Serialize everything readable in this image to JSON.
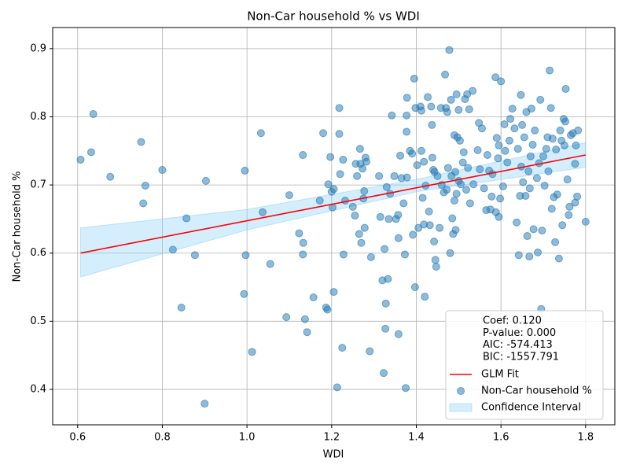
{
  "chart_data": {
    "type": "scatter",
    "title": "Non-Car household % vs WDI",
    "x_label": "WDI",
    "y_label": "Non-Car household %",
    "xlim": [
      0.541,
      1.869
    ],
    "ylim": [
      0.348,
      0.931
    ],
    "xticks": [
      0.6,
      0.8,
      {
        "value": 1,
        "label": "1.0"
      },
      1.2,
      1.4,
      1.6,
      1.8
    ],
    "yticks": [
      0.4,
      0.5,
      0.6,
      0.7,
      0.8,
      0.9
    ],
    "grid": true,
    "legend_position": "lower right",
    "annotations": [
      "Coef: 0.120",
      "P-value: 0.000",
      "AIC: -574.413",
      "BIC: -1557.791"
    ],
    "band": {
      "name": "Confidence Interval",
      "color": "#87cefa",
      "x": [
        0.607,
        1.0,
        1.4,
        1.8
      ],
      "lower": [
        0.565,
        0.634,
        0.69,
        0.726
      ],
      "upper": [
        0.637,
        0.664,
        0.708,
        0.762
      ]
    },
    "fit": {
      "name": "GLM Fit",
      "color": "#ff0000",
      "x": [
        0.607,
        1.8
      ],
      "values": [
        0.6,
        0.744
      ]
    },
    "series": [
      {
        "name": "Non-Car household %",
        "color": "#1f77b4",
        "x": [
          0.607,
          0.632,
          0.637,
          0.677,
          0.75,
          0.755,
          0.76,
          0.8,
          0.825,
          0.845,
          0.857,
          0.877,
          0.9,
          0.903,
          0.993,
          0.995,
          0.997,
          1.012,
          1.033,
          1.037,
          1.055,
          1.093,
          1.1,
          1.123,
          1.132,
          1.132,
          1.133,
          1.137,
          1.142,
          1.157,
          1.172,
          1.18,
          1.187,
          1.19,
          1.192,
          1.197,
          1.2,
          1.202,
          1.205,
          1.205,
          1.213,
          1.218,
          1.218,
          1.22,
          1.225,
          1.227,
          1.228,
          1.232,
          1.25,
          1.255,
          1.257,
          1.26,
          1.265,
          1.267,
          1.268,
          1.27,
          1.273,
          1.275,
          1.277,
          1.278,
          1.28,
          1.282,
          1.29,
          1.293,
          1.312,
          1.315,
          1.32,
          1.323,
          1.325,
          1.327,
          1.328,
          1.33,
          1.333,
          1.335,
          1.338,
          1.342,
          1.348,
          1.352,
          1.357,
          1.358,
          1.358,
          1.362,
          1.365,
          1.37,
          1.373,
          1.375,
          1.377,
          1.377,
          1.378,
          1.378,
          1.385,
          1.39,
          1.392,
          1.395,
          1.397,
          1.398,
          1.402,
          1.405,
          1.41,
          1.412,
          1.412,
          1.415,
          1.418,
          1.418,
          1.42,
          1.422,
          1.427,
          1.43,
          1.432,
          1.435,
          1.437,
          1.438,
          1.44,
          1.442,
          1.443,
          1.445,
          1.447,
          1.45,
          1.455,
          1.458,
          1.46,
          1.465,
          1.468,
          1.47,
          1.472,
          1.473,
          1.475,
          1.478,
          1.48,
          1.482,
          1.483,
          1.485,
          1.487,
          1.49,
          1.49,
          1.492,
          1.493,
          1.495,
          1.495,
          1.497,
          1.5,
          1.5,
          1.503,
          1.505,
          1.51,
          1.512,
          1.515,
          1.518,
          1.52,
          1.522,
          1.525,
          1.527,
          1.533,
          1.535,
          1.545,
          1.548,
          1.55,
          1.555,
          1.56,
          1.565,
          1.568,
          1.572,
          1.575,
          1.578,
          1.58,
          1.587,
          1.588,
          1.59,
          1.593,
          1.595,
          1.595,
          1.598,
          1.6,
          1.605,
          1.608,
          1.61,
          1.615,
          1.62,
          1.622,
          1.627,
          1.632,
          1.637,
          1.64,
          1.642,
          1.645,
          1.647,
          1.648,
          1.65,
          1.652,
          1.655,
          1.658,
          1.66,
          1.662,
          1.665,
          1.667,
          1.668,
          1.67,
          1.672,
          1.675,
          1.677,
          1.68,
          1.685,
          1.687,
          1.69,
          1.693,
          1.695,
          1.697,
          1.7,
          1.703,
          1.707,
          1.71,
          1.712,
          1.715,
          1.718,
          1.72,
          1.722,
          1.725,
          1.728,
          1.73,
          1.733,
          1.737,
          1.74,
          1.743,
          1.745,
          1.748,
          1.75,
          1.752,
          1.753,
          1.757,
          1.76,
          1.762,
          1.765,
          1.77,
          1.775,
          1.777,
          1.78,
          1.782,
          1.775,
          1.8
        ],
        "values": [
          0.737,
          0.748,
          0.804,
          0.712,
          0.763,
          0.673,
          0.699,
          0.722,
          0.605,
          0.52,
          0.651,
          0.597,
          0.379,
          0.706,
          0.54,
          0.721,
          0.597,
          0.455,
          0.776,
          0.66,
          0.584,
          0.506,
          0.685,
          0.629,
          0.744,
          0.598,
          0.615,
          0.503,
          0.484,
          0.535,
          0.677,
          0.776,
          0.52,
          0.517,
          0.701,
          0.741,
          0.69,
          0.667,
          0.694,
          0.543,
          0.403,
          0.813,
          0.775,
          0.716,
          0.461,
          0.737,
          0.598,
          0.677,
          0.668,
          0.655,
          0.731,
          0.713,
          0.628,
          0.753,
          0.731,
          0.615,
          0.724,
          0.68,
          0.691,
          0.637,
          0.74,
          0.734,
          0.456,
          0.594,
          0.713,
          0.653,
          0.56,
          0.424,
          0.606,
          0.489,
          0.526,
          0.697,
          0.562,
          0.65,
          0.687,
          0.802,
          0.713,
          0.65,
          0.656,
          0.622,
          0.481,
          0.743,
          0.71,
          0.673,
          0.598,
          0.402,
          0.778,
          0.802,
          0.711,
          0.828,
          0.75,
          0.746,
          0.627,
          0.856,
          0.55,
          0.813,
          0.729,
          0.637,
          0.815,
          0.809,
          0.75,
          0.681,
          0.734,
          0.642,
          0.536,
          0.699,
          0.829,
          0.661,
          0.641,
          0.815,
          0.788,
          0.74,
          0.722,
          0.617,
          0.719,
          0.59,
          0.58,
          0.713,
          0.637,
          0.813,
          0.7,
          0.689,
          0.862,
          0.813,
          0.693,
          0.807,
          0.725,
          0.898,
          0.6,
          0.825,
          0.713,
          0.651,
          0.628,
          0.773,
          0.677,
          0.719,
          0.634,
          0.833,
          0.687,
          0.77,
          0.706,
          0.81,
          0.765,
          0.701,
          0.733,
          0.748,
          0.826,
          0.693,
          0.833,
          0.725,
          0.811,
          0.673,
          0.838,
          0.701,
          0.751,
          0.791,
          0.723,
          0.783,
          0.695,
          0.663,
          0.744,
          0.721,
          0.664,
          0.683,
          0.716,
          0.858,
          0.66,
          0.769,
          0.739,
          0.758,
          0.653,
          0.68,
          0.852,
          0.698,
          0.789,
          0.75,
          0.733,
          0.765,
          0.797,
          0.812,
          0.783,
          0.645,
          0.753,
          0.597,
          0.684,
          0.832,
          0.727,
          0.788,
          0.704,
          0.77,
          0.684,
          0.807,
          0.625,
          0.72,
          0.595,
          0.695,
          0.742,
          0.812,
          0.759,
          0.635,
          0.78,
          0.71,
          0.601,
          0.732,
          0.825,
          0.518,
          0.633,
          0.742,
          0.699,
          0.753,
          0.77,
          0.72,
          0.868,
          0.813,
          0.665,
          0.768,
          0.682,
          0.616,
          0.752,
          0.686,
          0.592,
          0.78,
          0.765,
          0.641,
          0.797,
          0.758,
          0.793,
          0.841,
          0.708,
          0.656,
          0.668,
          0.773,
          0.776,
          0.731,
          0.758,
          0.683,
          0.78,
          0.674,
          0.646
        ]
      }
    ]
  }
}
